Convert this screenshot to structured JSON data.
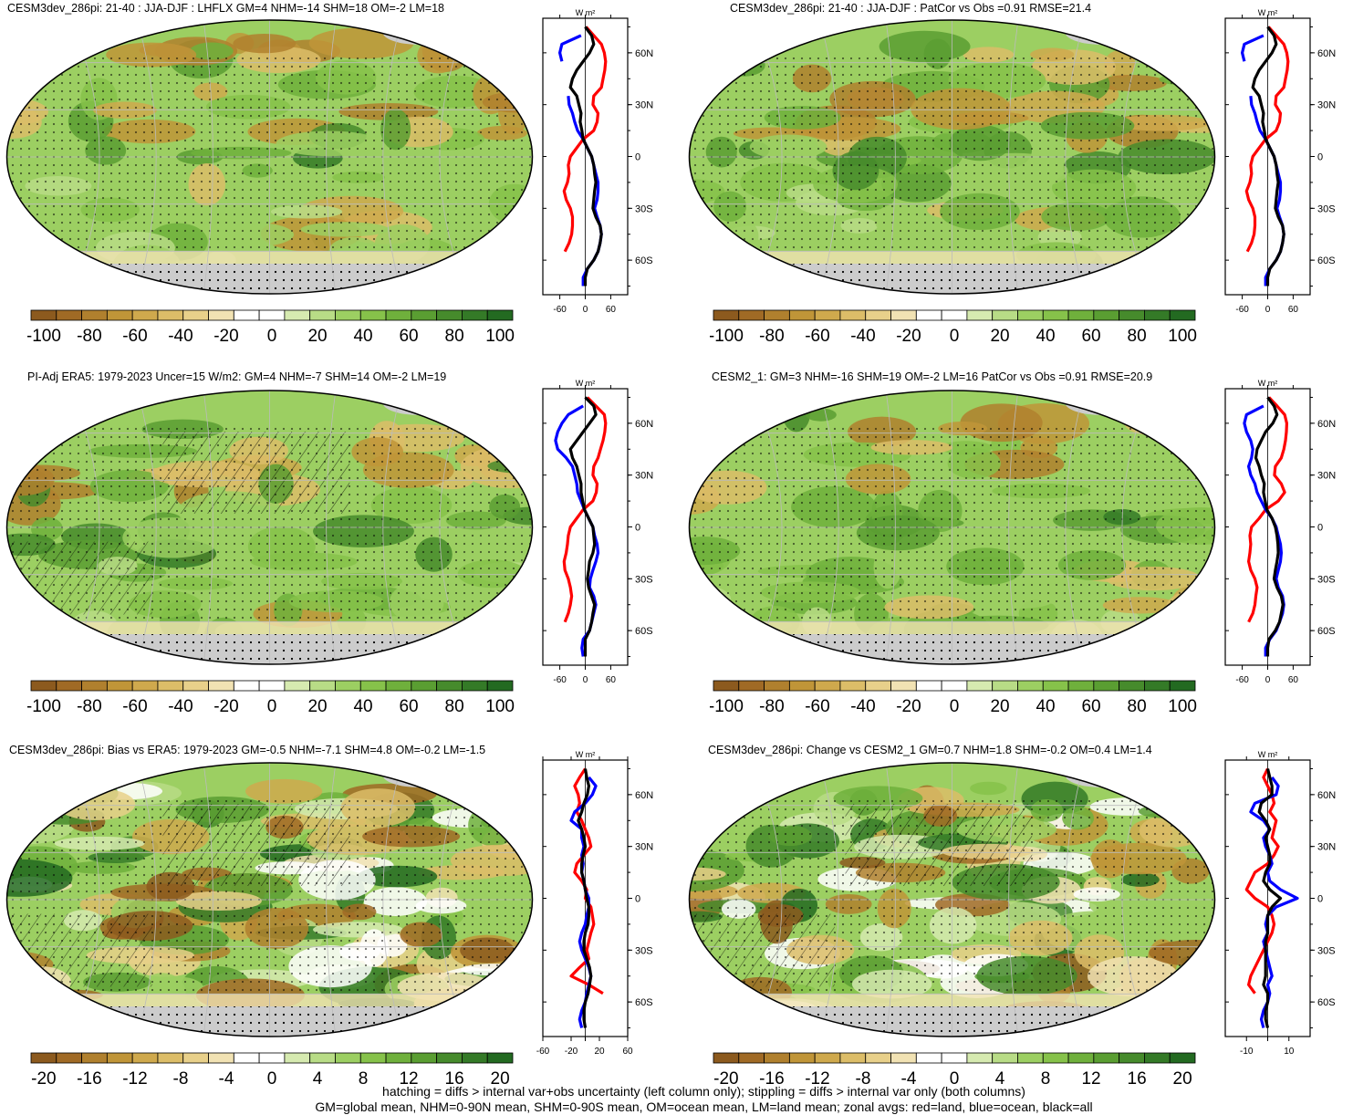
{
  "panels": [
    {
      "title": "CESM3dev_286pi: 21-40 : JJA-DJF : LHFLX GM=4 NHM=-14 SHM=18 OM=-2 LM=18",
      "palette": "A",
      "zonal": "lhflx_a"
    },
    {
      "title": "CESM3dev_286pi: 21-40 : JJA-DJF : PatCor vs Obs =0.91 RMSE=21.4",
      "palette": "A",
      "zonal": "lhflx_a"
    },
    {
      "title": "PI-Adj ERA5: 1979-2023 Uncer=15 W/m2: GM=4 NHM=-7 SHM=14 OM=-2 LM=19",
      "palette": "A",
      "zonal": "lhflx_b"
    },
    {
      "title": "CESM2_1: GM=3 NHM=-16 SHM=19 OM=-2 LM=16 PatCor vs Obs =0.91 RMSE=20.9",
      "palette": "A",
      "zonal": "lhflx_c"
    },
    {
      "title": "CESM3dev_286pi: Bias vs ERA5: 1979-2023 GM=-0.5 NHM=-7.1 SHM=4.8 OM=-0.2 LM=-1.5",
      "palette": "B",
      "zonal": "bias"
    },
    {
      "title": "CESM3dev_286pi: Change vs CESM2_1 GM=0.7 NHM=1.8 SHM=-0.2 OM=0.4 LM=1.4",
      "palette": "B",
      "zonal": "change"
    }
  ],
  "colorbars": {
    "A": {
      "labels": [
        "-100",
        "-80",
        "-60",
        "-40",
        "-20",
        "0",
        "20",
        "40",
        "60",
        "80",
        "100"
      ]
    },
    "B": {
      "labels": [
        "-20",
        "-16",
        "-12",
        "-8",
        "-4",
        "0",
        "4",
        "8",
        "12",
        "16",
        "20"
      ]
    }
  },
  "colors": {
    "scale": [
      "#8c5a1e",
      "#a06a25",
      "#b0802e",
      "#c09538",
      "#cfa94d",
      "#dcbd68",
      "#e8d08a",
      "#f1e2b3",
      "#ffffff",
      "#ffffff",
      "#d6eab0",
      "#b8dc86",
      "#9ccf62",
      "#86c24a",
      "#6fb03c",
      "#5a9e32",
      "#468b2c",
      "#347a27",
      "#236a21"
    ],
    "land": "#ff0000",
    "ocean": "#0000ff",
    "all": "#000000",
    "missing": "#cccccc"
  },
  "zonal_axis": {
    "unit": "W m²",
    "lat_labels": [
      "60N",
      "30N",
      "0",
      "30S",
      "60S"
    ],
    "ticks_wide": [
      "-60",
      "0",
      "60"
    ],
    "ticks_bias": [
      "-60",
      "-20",
      "20",
      "60"
    ],
    "ticks_change": [
      "-10",
      "10"
    ]
  },
  "chart_data": [
    {
      "type": "line",
      "name": "lhflx_a",
      "ylabel": "",
      "lat": [
        75,
        70,
        65,
        60,
        55,
        50,
        45,
        40,
        35,
        30,
        25,
        20,
        15,
        10,
        5,
        0,
        -5,
        -10,
        -15,
        -20,
        -25,
        -30,
        -35,
        -40,
        -45,
        -50,
        -55,
        -60,
        -65,
        -70,
        -75
      ],
      "series": [
        {
          "name": "red=land",
          "values": [
            2,
            20,
            38,
            45,
            48,
            46,
            42,
            38,
            20,
            18,
            30,
            28,
            20,
            -5,
            -20,
            -35,
            -40,
            -38,
            -42,
            -50,
            -45,
            -35,
            -30,
            -30,
            -32,
            -38,
            -48,
            null,
            null,
            null,
            null
          ]
        },
        {
          "name": "blue=ocean",
          "values": [
            null,
            -10,
            -55,
            -60,
            -55,
            null,
            null,
            null,
            -40,
            -38,
            -30,
            -25,
            -18,
            -5,
            5,
            15,
            20,
            25,
            30,
            30,
            28,
            22,
            28,
            35,
            38,
            35,
            30,
            20,
            5,
            -5,
            -5
          ]
        },
        {
          "name": "black=all",
          "values": [
            0,
            15,
            20,
            10,
            -5,
            -20,
            -30,
            -35,
            -20,
            -15,
            -10,
            -12,
            -8,
            -5,
            5,
            15,
            20,
            22,
            25,
            22,
            20,
            18,
            25,
            35,
            38,
            35,
            30,
            20,
            5,
            0,
            0
          ]
        }
      ]
    },
    {
      "type": "line",
      "name": "lhflx_b",
      "ylabel": "",
      "lat": [
        75,
        70,
        65,
        60,
        55,
        50,
        45,
        40,
        35,
        30,
        25,
        20,
        15,
        10,
        5,
        0,
        -5,
        -10,
        -15,
        -20,
        -25,
        -30,
        -35,
        -40,
        -45,
        -50,
        -55,
        -60,
        -65,
        -70,
        -75
      ],
      "series": [
        {
          "name": "red=land",
          "values": [
            5,
            25,
            45,
            48,
            46,
            42,
            36,
            30,
            20,
            18,
            28,
            26,
            18,
            -5,
            -20,
            -35,
            -40,
            -42,
            -45,
            -50,
            -48,
            -40,
            -35,
            -32,
            -35,
            -40,
            -48,
            null,
            null,
            null,
            null
          ]
        },
        {
          "name": "blue=ocean",
          "values": [
            null,
            -5,
            -40,
            -55,
            -65,
            -70,
            -65,
            -45,
            -30,
            -25,
            -20,
            -18,
            -10,
            -2,
            8,
            18,
            22,
            28,
            30,
            25,
            18,
            12,
            10,
            20,
            25,
            20,
            15,
            10,
            -5,
            -8,
            -5
          ]
        },
        {
          "name": "black=all",
          "values": [
            0,
            20,
            25,
            10,
            -5,
            -20,
            -35,
            -30,
            -20,
            -15,
            -10,
            -10,
            -6,
            -2,
            8,
            18,
            20,
            22,
            18,
            10,
            8,
            5,
            8,
            15,
            22,
            18,
            15,
            10,
            0,
            0,
            0
          ]
        }
      ]
    },
    {
      "type": "line",
      "name": "lhflx_c",
      "ylabel": "",
      "lat": [
        75,
        70,
        65,
        60,
        55,
        50,
        45,
        40,
        35,
        30,
        25,
        20,
        15,
        10,
        5,
        0,
        -5,
        -10,
        -15,
        -20,
        -25,
        -30,
        -35,
        -40,
        -45,
        -50,
        -55,
        -60,
        -65,
        -70,
        -75
      ],
      "series": [
        {
          "name": "red=land",
          "values": [
            3,
            22,
            40,
            45,
            44,
            42,
            38,
            32,
            18,
            16,
            32,
            40,
            25,
            -5,
            -20,
            -38,
            -42,
            -40,
            -42,
            -45,
            -40,
            -30,
            -25,
            -28,
            -30,
            -35,
            -45,
            null,
            null,
            null,
            null
          ]
        },
        {
          "name": "blue=ocean",
          "values": [
            null,
            -10,
            -50,
            -55,
            -50,
            -40,
            -35,
            -38,
            -45,
            -40,
            -30,
            -25,
            -15,
            -5,
            10,
            20,
            25,
            30,
            32,
            30,
            25,
            20,
            25,
            35,
            38,
            35,
            28,
            20,
            5,
            -5,
            -5
          ]
        },
        {
          "name": "black=all",
          "values": [
            0,
            15,
            22,
            12,
            -5,
            -15,
            -25,
            -28,
            -20,
            -15,
            -8,
            -10,
            -6,
            -2,
            10,
            18,
            22,
            24,
            25,
            22,
            18,
            15,
            22,
            32,
            36,
            32,
            28,
            18,
            3,
            0,
            0
          ]
        }
      ]
    },
    {
      "type": "line",
      "name": "bias",
      "ylabel": "",
      "lat": [
        75,
        70,
        65,
        60,
        55,
        50,
        45,
        40,
        35,
        30,
        25,
        20,
        15,
        10,
        5,
        0,
        -5,
        -10,
        -15,
        -20,
        -25,
        -30,
        -35,
        -40,
        -45,
        -50,
        -55,
        -60,
        -65,
        -70,
        -75
      ],
      "series": [
        {
          "name": "red=land",
          "values": [
            0,
            -8,
            -15,
            -10,
            -8,
            -12,
            -5,
            0,
            5,
            8,
            -2,
            -12,
            -15,
            -5,
            2,
            0,
            8,
            10,
            12,
            8,
            5,
            2,
            5,
            -8,
            -20,
            5,
            25,
            null,
            null,
            null,
            null
          ]
        },
        {
          "name": "blue=ocean",
          "values": [
            null,
            5,
            15,
            10,
            0,
            -15,
            -20,
            -5,
            -5,
            -2,
            -5,
            -3,
            -5,
            -2,
            0,
            5,
            5,
            2,
            0,
            -5,
            -8,
            -5,
            0,
            5,
            8,
            5,
            2,
            0,
            -5,
            -8,
            -5
          ]
        },
        {
          "name": "black=all",
          "values": [
            0,
            2,
            5,
            3,
            -2,
            -5,
            -10,
            -5,
            -2,
            0,
            -3,
            -5,
            -5,
            -2,
            0,
            2,
            5,
            5,
            4,
            0,
            -2,
            -2,
            2,
            6,
            8,
            6,
            4,
            0,
            -2,
            -2,
            0
          ]
        }
      ]
    },
    {
      "type": "line",
      "name": "change",
      "ylabel": "",
      "lat": [
        75,
        70,
        65,
        60,
        55,
        50,
        45,
        40,
        35,
        30,
        25,
        20,
        15,
        10,
        5,
        0,
        -5,
        -10,
        -15,
        -20,
        -25,
        -30,
        -35,
        -40,
        -45,
        -50,
        -55,
        -60,
        -65,
        -70,
        -75
      ],
      "series": [
        {
          "name": "red=land",
          "values": [
            0,
            -2,
            0,
            2,
            3,
            1,
            4,
            3,
            2,
            5,
            3,
            0,
            -6,
            -8,
            -10,
            -6,
            0,
            2,
            3,
            2,
            0,
            -2,
            -4,
            -6,
            -8,
            -9,
            -6,
            null,
            null,
            null,
            null
          ]
        },
        {
          "name": "blue=ocean",
          "values": [
            null,
            2,
            5,
            4,
            -6,
            -8,
            -2,
            1,
            -2,
            -1,
            1,
            2,
            0,
            1,
            6,
            14,
            4,
            0,
            -1,
            0,
            -2,
            -1,
            0,
            1,
            2,
            0,
            1,
            0,
            -2,
            -3,
            -2
          ]
        },
        {
          "name": "black=all",
          "values": [
            0,
            1,
            2,
            2,
            -3,
            -4,
            -1,
            1,
            -1,
            0,
            1,
            1,
            -1,
            -2,
            1,
            6,
            2,
            0,
            0,
            0,
            -1,
            -1,
            -1,
            -1,
            -1,
            -2,
            0,
            0,
            -1,
            -1,
            0
          ]
        }
      ]
    }
  ],
  "footer": {
    "line1": "hatching = diffs > internal var+obs uncertainty (left column only); stippling = diffs > internal var only (both columns)",
    "line2": "GM=global mean, NHM=0-90N mean, SHM=0-90S mean, OM=ocean mean, LM=land mean; zonal avgs: red=land, blue=ocean, black=all"
  }
}
